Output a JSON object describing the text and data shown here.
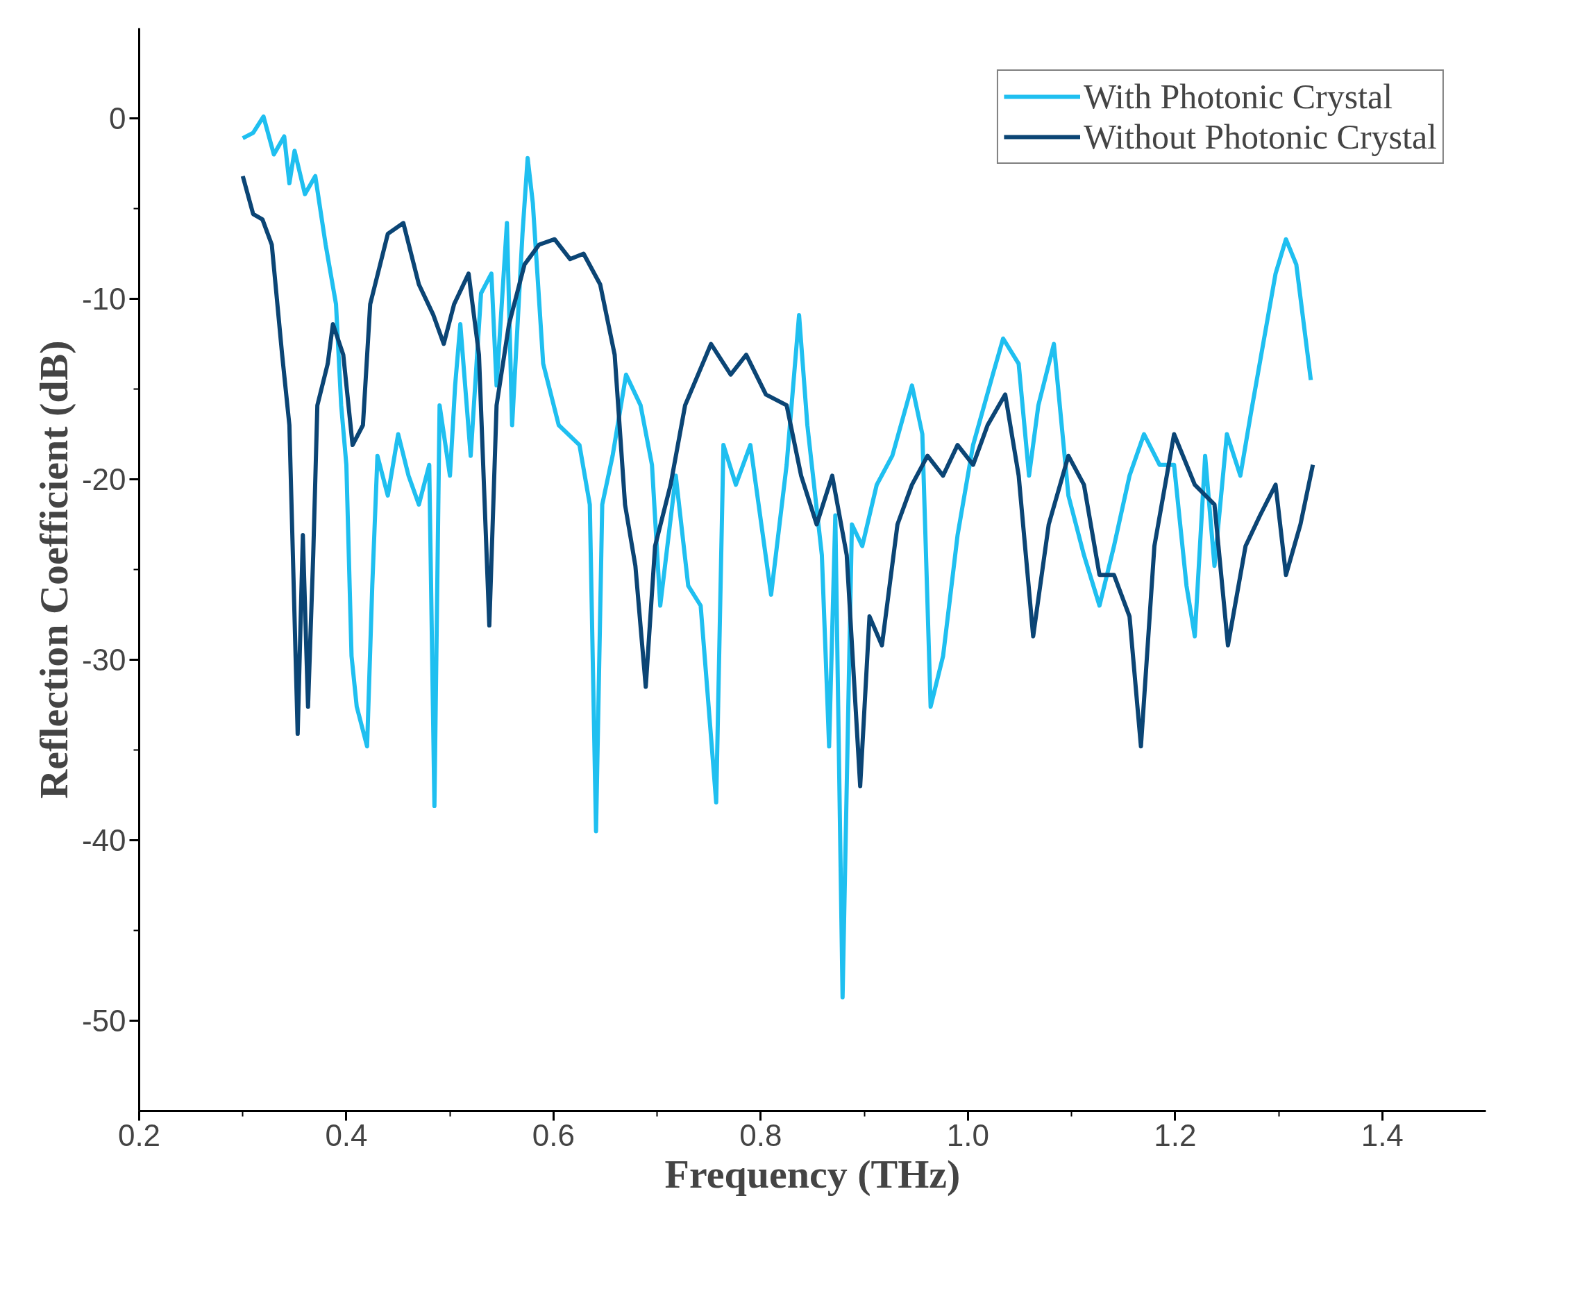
{
  "chart_data": {
    "type": "line",
    "xlabel": "Frequency (THz)",
    "ylabel": "Reflection Coefficient (dB)",
    "xlim": [
      0.2,
      1.5
    ],
    "ylim": [
      -55,
      5
    ],
    "xticks": [
      {
        "value": 0.2,
        "label": "0.2"
      },
      {
        "value": 0.4,
        "label": "0.4"
      },
      {
        "value": 0.6,
        "label": "0.6"
      },
      {
        "value": 0.8,
        "label": "0.8"
      },
      {
        "value": 1.0,
        "label": "1.0"
      },
      {
        "value": 1.2,
        "label": "1.2"
      },
      {
        "value": 1.4,
        "label": "1.4"
      }
    ],
    "yticks": [
      0,
      -10,
      -20,
      -30,
      -40,
      -50
    ],
    "grid": false,
    "legend": "top right",
    "line_style": "solid",
    "marker": "none",
    "series": [
      {
        "name": "With Photonic Crystal",
        "color": "#1fbff0",
        "x": [
          0.3,
          0.31,
          0.32,
          0.33,
          0.34,
          0.345,
          0.35,
          0.36,
          0.37,
          0.38,
          0.39,
          0.395,
          0.4,
          0.405,
          0.41,
          0.42,
          0.425,
          0.43,
          0.44,
          0.45,
          0.46,
          0.47,
          0.48,
          0.485,
          0.49,
          0.5,
          0.505,
          0.51,
          0.52,
          0.53,
          0.54,
          0.545,
          0.555,
          0.56,
          0.57,
          0.575,
          0.58,
          0.59,
          0.605,
          0.625,
          0.635,
          0.641,
          0.647,
          0.657,
          0.67,
          0.684,
          0.695,
          0.703,
          0.718,
          0.73,
          0.742,
          0.757,
          0.764,
          0.776,
          0.79,
          0.81,
          0.825,
          0.837,
          0.845,
          0.859,
          0.866,
          0.872,
          0.879,
          0.888,
          0.898,
          0.912,
          0.927,
          0.946,
          0.956,
          0.964,
          0.976,
          0.99,
          1.005,
          1.024,
          1.034,
          1.049,
          1.059,
          1.068,
          1.083,
          1.097,
          1.112,
          1.127,
          1.141,
          1.156,
          1.17,
          1.185,
          1.199,
          1.211,
          1.219,
          1.229,
          1.238,
          1.25,
          1.263,
          1.273,
          1.285,
          1.297,
          1.307,
          1.317,
          1.331
        ],
        "values": [
          -1.1,
          -0.8,
          0.1,
          -2,
          -1,
          -3.6,
          -1.8,
          -4.2,
          -3.2,
          -7,
          -10.3,
          -15.9,
          -19.2,
          -29.8,
          -32.6,
          -34.8,
          -25.9,
          -18.7,
          -20.9,
          -17.5,
          -19.8,
          -21.4,
          -19.2,
          -38.1,
          -15.9,
          -19.8,
          -14.8,
          -11.4,
          -18.7,
          -9.7,
          -8.6,
          -14.8,
          -5.8,
          -17,
          -6.4,
          -2.2,
          -4.7,
          -13.6,
          -17,
          -18.1,
          -21.4,
          -39.5,
          -21.4,
          -18.7,
          -14.2,
          -15.9,
          -19.2,
          -27,
          -19.8,
          -25.9,
          -27,
          -37.9,
          -18.1,
          -20.3,
          -18.1,
          -26.4,
          -19.2,
          -10.9,
          -17,
          -24.2,
          -34.8,
          -22,
          -48.7,
          -22.5,
          -23.7,
          -20.3,
          -18.7,
          -14.8,
          -17.5,
          -32.6,
          -29.8,
          -23.1,
          -18.1,
          -14.2,
          -12.2,
          -13.6,
          -19.8,
          -15.9,
          -12.5,
          -20.9,
          -24.2,
          -27,
          -23.7,
          -19.8,
          -17.5,
          -19.2,
          -19.2,
          -25.9,
          -28.7,
          -18.7,
          -24.8,
          -17.5,
          -19.8,
          -16.4,
          -12.5,
          -8.6,
          -6.7,
          -8.1,
          -14.5
        ]
      },
      {
        "name": "Without Photonic Crystal",
        "color": "#0b4575",
        "x": [
          0.3,
          0.31,
          0.319,
          0.328,
          0.338,
          0.345,
          0.353,
          0.358,
          0.363,
          0.368,
          0.372,
          0.382,
          0.387,
          0.397,
          0.406,
          0.416,
          0.423,
          0.44,
          0.455,
          0.47,
          0.484,
          0.494,
          0.504,
          0.518,
          0.528,
          0.538,
          0.545,
          0.557,
          0.572,
          0.586,
          0.601,
          0.616,
          0.629,
          0.645,
          0.659,
          0.669,
          0.679,
          0.689,
          0.698,
          0.713,
          0.727,
          0.752,
          0.771,
          0.786,
          0.805,
          0.825,
          0.839,
          0.854,
          0.869,
          0.883,
          0.896,
          0.905,
          0.917,
          0.932,
          0.946,
          0.961,
          0.976,
          0.99,
          1.005,
          1.019,
          1.036,
          1.049,
          1.063,
          1.078,
          1.097,
          1.112,
          1.127,
          1.141,
          1.156,
          1.167,
          1.18,
          1.199,
          1.219,
          1.238,
          1.251,
          1.268,
          1.282,
          1.297,
          1.307,
          1.321,
          1.333
        ],
        "values": [
          -3.2,
          -5.3,
          -5.6,
          -7,
          -13.1,
          -17,
          -34.1,
          -23.1,
          -32.6,
          -24.2,
          -15.9,
          -13.6,
          -11.4,
          -13.1,
          -18.1,
          -17,
          -10.3,
          -6.4,
          -5.8,
          -9.2,
          -10.9,
          -12.5,
          -10.3,
          -8.6,
          -13.1,
          -28.1,
          -15.9,
          -11.4,
          -8.1,
          -7,
          -6.7,
          -7.8,
          -7.5,
          -9.2,
          -13.1,
          -21.4,
          -24.8,
          -31.5,
          -23.7,
          -20.3,
          -15.9,
          -12.5,
          -14.2,
          -13.1,
          -15.3,
          -15.9,
          -19.8,
          -22.5,
          -19.8,
          -24.2,
          -37,
          -27.6,
          -29.2,
          -22.5,
          -20.3,
          -18.7,
          -19.8,
          -18.1,
          -19.2,
          -17,
          -15.3,
          -19.8,
          -28.7,
          -22.5,
          -18.7,
          -20.3,
          -25.3,
          -25.3,
          -27.6,
          -34.8,
          -23.7,
          -17.5,
          -20.3,
          -21.4,
          -29.2,
          -23.7,
          -22,
          -20.3,
          -25.3,
          -22.5,
          -19.2
        ]
      }
    ]
  }
}
